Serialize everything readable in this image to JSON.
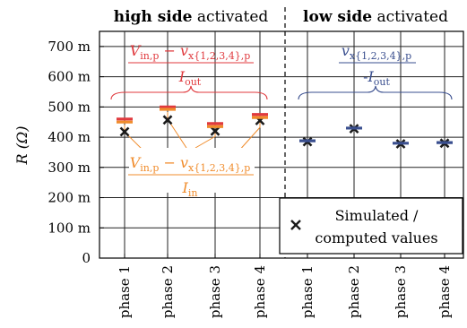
{
  "chart_data": {
    "type": "scatter",
    "ylabel": "R (Ω)",
    "ylim": [
      0,
      750
    ],
    "yticks": [
      {
        "value": 0,
        "label": "0"
      },
      {
        "value": 100,
        "label": "100 m"
      },
      {
        "value": 200,
        "label": "200 m"
      },
      {
        "value": 300,
        "label": "300 m"
      },
      {
        "value": 400,
        "label": "400 m"
      },
      {
        "value": 500,
        "label": "500 m"
      },
      {
        "value": 600,
        "label": "600 m"
      },
      {
        "value": 700,
        "label": "700 m"
      }
    ],
    "categories": [
      "phase 1",
      "phase 2",
      "phase 3",
      "phase 4",
      "phase 1",
      "phase 2",
      "phase 3",
      "phase 4"
    ],
    "groups": [
      {
        "bold": "high side",
        "rest": " activated"
      },
      {
        "bold": "low side",
        "rest": " activated"
      }
    ],
    "series": [
      {
        "name": "Simulated / computed values",
        "marker": "x",
        "color": "#1a1a1a",
        "values": [
          418,
          457,
          420,
          455,
          385,
          428,
          378,
          380
        ]
      },
      {
        "marker": "dash",
        "color": "#e03a3e",
        "values": [
          460,
          500,
          445,
          475,
          null,
          null,
          null,
          null
        ]
      },
      {
        "marker": "dash",
        "color": "#f08c2c",
        "values": [
          450,
          492,
          435,
          465,
          null,
          null,
          null,
          null
        ]
      },
      {
        "marker": "dash",
        "color": "#3a4f8f",
        "values": [
          null,
          null,
          null,
          null,
          388,
          430,
          380,
          382
        ]
      }
    ],
    "annotations": {
      "out_high": {
        "numerator": "V_in,p − v_x{1,2,3,4},p",
        "denominator": "I_out",
        "color": "#e03a3e"
      },
      "in_high": {
        "numerator": "V_in,p − v_x{1,2,3,4},p",
        "denominator": "I_in",
        "color": "#f08c2c"
      },
      "out_low": {
        "numerator": "v_x{1,2,3,4},p",
        "denominator": "-I_out",
        "color": "#3a4f8f"
      }
    },
    "legend": {
      "position": "bottom-right",
      "label_line1": "Simulated /",
      "label_line2": "computed values"
    },
    "grid": true
  }
}
